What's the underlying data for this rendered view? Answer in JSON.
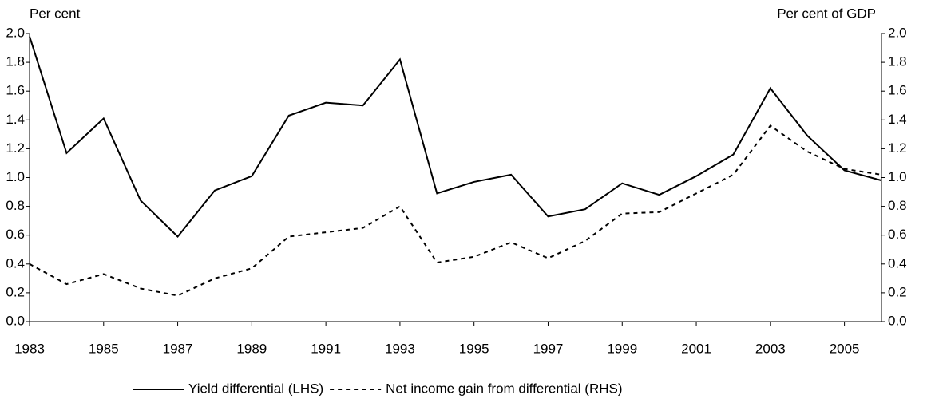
{
  "chart_data": {
    "type": "line",
    "ylabel": "Per cent",
    "y2label": "Per cent of GDP",
    "x": [
      1983,
      1984,
      1985,
      1986,
      1987,
      1988,
      1989,
      1990,
      1991,
      1992,
      1993,
      1994,
      1995,
      1996,
      1997,
      1998,
      1999,
      2000,
      2001,
      2002,
      2003,
      2004,
      2005,
      2006
    ],
    "xlim": [
      1983,
      2006
    ],
    "xticks": [
      1983,
      1985,
      1987,
      1989,
      1991,
      1993,
      1995,
      1997,
      1999,
      2001,
      2003,
      2005
    ],
    "ylim": [
      0,
      2
    ],
    "yticks": [
      {
        "value": 0,
        "label": "0.0"
      },
      0.2,
      0.4,
      0.6,
      0.8,
      {
        "value": 1,
        "label": "1.0"
      },
      1.2,
      1.4,
      1.6,
      1.8,
      {
        "value": 2,
        "label": "2.0"
      }
    ],
    "y2lim": [
      0,
      2
    ],
    "y2ticks": [
      {
        "value": 0,
        "label": "0.0"
      },
      0.2,
      0.4,
      0.6,
      0.8,
      {
        "value": 1,
        "label": "1.0"
      },
      1.2,
      1.4,
      1.6,
      1.8,
      {
        "value": 2,
        "label": "2.0"
      }
    ],
    "series": [
      {
        "name": "Yield differential (LHS)",
        "color": "#000000",
        "dash": "solid",
        "values": [
          1.98,
          1.17,
          1.41,
          0.84,
          0.59,
          0.91,
          1.01,
          1.43,
          1.52,
          1.5,
          1.82,
          0.89,
          0.97,
          1.02,
          0.73,
          0.78,
          0.96,
          0.88,
          1.01,
          1.16,
          1.62,
          1.29,
          1.05,
          0.98
        ]
      },
      {
        "name": "Net income gain from differential (RHS)",
        "color": "#000000",
        "dash": "dotted",
        "axis": "y2",
        "values": [
          0.4,
          0.26,
          0.33,
          0.23,
          0.18,
          0.3,
          0.37,
          0.59,
          0.62,
          0.65,
          0.8,
          0.41,
          0.45,
          0.55,
          0.44,
          0.56,
          0.75,
          0.76,
          0.89,
          1.02,
          1.36,
          1.18,
          1.06,
          1.02
        ]
      }
    ],
    "legend": "bottom"
  }
}
